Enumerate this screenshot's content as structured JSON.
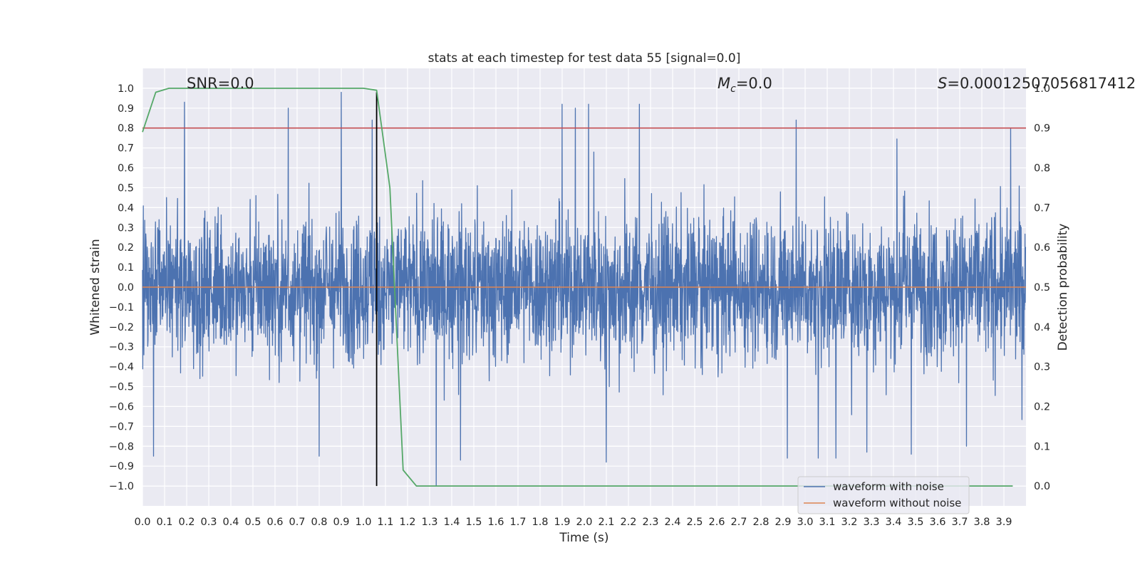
{
  "chart_data": {
    "type": "line",
    "title": "stats at each timestep for test data 55 [signal=0.0]",
    "xlabel": "Time (s)",
    "ylabel": "Whitened strain",
    "y2label": "Detection probability",
    "xlim": [
      0.0,
      4.0
    ],
    "ylim": [
      -1.1,
      1.1
    ],
    "y2lim": [
      -0.05,
      1.05
    ],
    "x_ticks": [
      "0.0",
      "0.1",
      "0.2",
      "0.3",
      "0.4",
      "0.5",
      "0.6",
      "0.7",
      "0.8",
      "0.9",
      "1.0",
      "1.1",
      "1.2",
      "1.3",
      "1.4",
      "1.5",
      "1.6",
      "1.7",
      "1.8",
      "1.9",
      "2.0",
      "2.1",
      "2.2",
      "2.3",
      "2.4",
      "2.5",
      "2.6",
      "2.7",
      "2.8",
      "2.9",
      "3.0",
      "3.1",
      "3.2",
      "3.3",
      "3.4",
      "3.5",
      "3.6",
      "3.7",
      "3.8",
      "3.9"
    ],
    "y_ticks": [
      "−1.0",
      "−0.9",
      "−0.8",
      "−0.7",
      "−0.6",
      "−0.5",
      "−0.4",
      "−0.3",
      "−0.2",
      "−0.1",
      "0.0",
      "0.1",
      "0.2",
      "0.3",
      "0.4",
      "0.5",
      "0.6",
      "0.7",
      "0.8",
      "0.9",
      "1.0"
    ],
    "y2_ticks": [
      "0.0",
      "0.1",
      "0.2",
      "0.3",
      "0.4",
      "0.5",
      "0.6",
      "0.7",
      "0.8",
      "0.9",
      "1.0"
    ],
    "annotations": {
      "snr": "SNR=0.0",
      "mc_symbol": "M",
      "mc_sub": "c",
      "mc_value": "=0.0",
      "s_symbol": "S",
      "s_value": "=0.00012507056817412"
    },
    "threshold": {
      "axis": "right",
      "value": 0.9,
      "color": "#c44e52"
    },
    "marker_line": {
      "x": 1.06,
      "ymin": -1.0,
      "ymax": 0.98,
      "color": "#000000"
    },
    "series": [
      {
        "name": "waveform with noise",
        "axis": "left",
        "color": "#4c72b0",
        "style": "noise",
        "amplitude_envelope": 0.5,
        "spike_peaks_upper": [
          [
            0.19,
            0.93
          ],
          [
            0.66,
            0.9
          ],
          [
            0.9,
            0.98
          ],
          [
            1.04,
            0.84
          ],
          [
            1.9,
            0.92
          ],
          [
            1.96,
            0.9
          ],
          [
            2.02,
            0.92
          ],
          [
            2.25,
            0.92
          ],
          [
            2.96,
            0.84
          ],
          [
            3.93,
            0.8
          ]
        ],
        "spike_peaks_lower": [
          [
            0.05,
            -0.85
          ],
          [
            0.8,
            -0.85
          ],
          [
            1.33,
            -1.0
          ],
          [
            1.44,
            -0.87
          ],
          [
            2.1,
            -0.88
          ],
          [
            2.92,
            -0.86
          ],
          [
            3.06,
            -0.86
          ],
          [
            3.14,
            -0.86
          ],
          [
            3.28,
            -0.83
          ],
          [
            3.48,
            -0.84
          ],
          [
            3.73,
            -0.8
          ]
        ]
      },
      {
        "name": "waveform without noise",
        "axis": "left",
        "color": "#dd8452",
        "x": [
          0.0,
          4.0
        ],
        "y": [
          0.0,
          0.0
        ]
      },
      {
        "name": "detection probability",
        "axis": "right",
        "color": "#55a868",
        "x": [
          0.0,
          0.06,
          0.12,
          0.3,
          1.0,
          1.06,
          1.12,
          1.18,
          1.24,
          1.3,
          1.36,
          1.5,
          3.94
        ],
        "y": [
          0.89,
          0.99,
          1.0,
          1.0,
          1.0,
          0.995,
          0.75,
          0.04,
          0.0,
          0.0,
          0.0,
          0.0,
          0.0
        ]
      }
    ],
    "legend": {
      "location": "lower-right",
      "entries": [
        {
          "label": "waveform with noise",
          "color": "#4c72b0"
        },
        {
          "label": "waveform without noise",
          "color": "#dd8452"
        }
      ]
    },
    "grid": true
  }
}
